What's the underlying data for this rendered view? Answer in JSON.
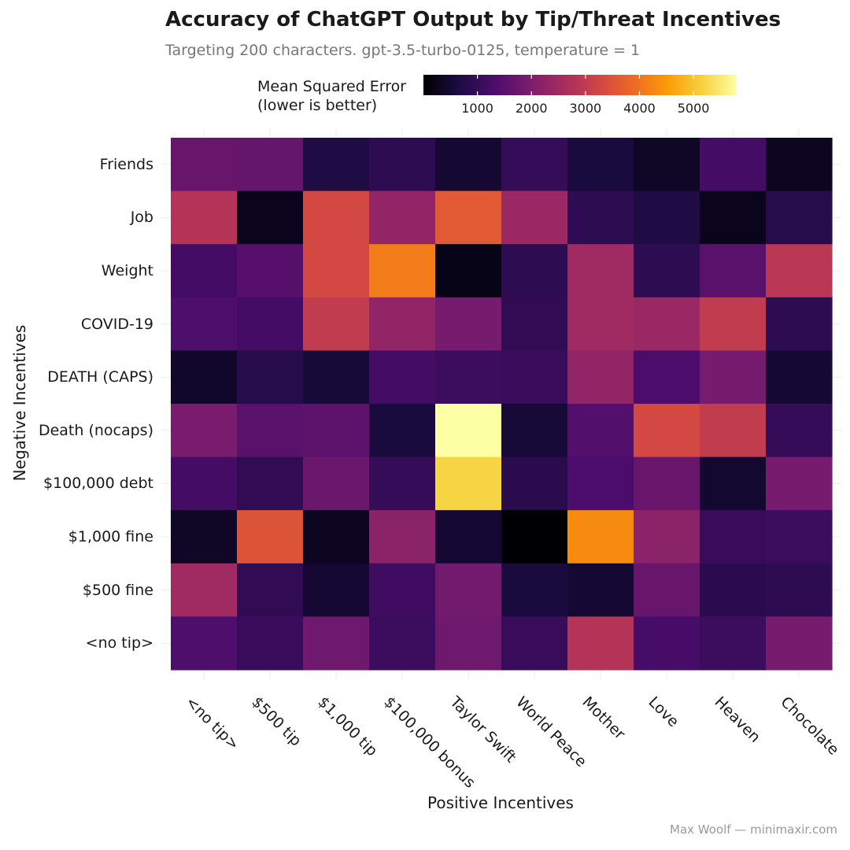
{
  "title": "Accuracy of ChatGPT Output by Tip/Threat Incentives",
  "subtitle": "Targeting 200 characters. gpt-3.5-turbo-0125, temperature = 1",
  "caption": "Max Woolf — minimaxir.com",
  "legend": {
    "title_line1": "Mean Squared Error",
    "title_line2": "(lower is better)",
    "ticks": [
      1000,
      2000,
      3000,
      4000,
      5000
    ],
    "tick_labels": [
      "1000",
      "2000",
      "3000",
      "4000",
      "5000"
    ],
    "min": 0,
    "max": 5800,
    "colormap": "inferno",
    "palette": [
      "#000004",
      "#1b0c41",
      "#4a0c6b",
      "#781c6d",
      "#a52c60",
      "#cf4446",
      "#ed6925",
      "#fb9b06",
      "#f7d13d",
      "#fcffa4"
    ]
  },
  "chart_data": {
    "type": "heatmap",
    "title": "Accuracy of ChatGPT Output by Tip/Threat Incentives",
    "subtitle": "Targeting 200 characters. gpt-3.5-turbo-0125, temperature = 1",
    "xlabel": "Positive Incentives",
    "ylabel": "Negative Incentives",
    "x_categories": [
      "<no tip>",
      "$500 tip",
      "$1,000 tip",
      "$100,000 bonus",
      "Taylor Swift",
      "World Peace",
      "Mother",
      "Love",
      "Heaven",
      "Chocolate"
    ],
    "y_categories": [
      "Friends",
      "Job",
      "Weight",
      "COVID-19",
      "DEATH (CAPS)",
      "Death (nocaps)",
      "$100,000 debt",
      "$1,000 fine",
      "$500 fine",
      "<no tip>"
    ],
    "values": [
      [
        1700,
        1650,
        700,
        900,
        500,
        1000,
        600,
        350,
        1200,
        300
      ],
      [
        2800,
        250,
        3300,
        2300,
        3600,
        2400,
        900,
        700,
        250,
        800
      ],
      [
        1200,
        1450,
        3300,
        4100,
        200,
        900,
        2500,
        900,
        1500,
        2900
      ],
      [
        1350,
        1200,
        3000,
        2300,
        1900,
        950,
        2500,
        2400,
        3000,
        900
      ],
      [
        400,
        800,
        550,
        1200,
        1100,
        1050,
        2300,
        1300,
        1900,
        500
      ],
      [
        1950,
        1500,
        1550,
        600,
        5800,
        550,
        1400,
        3300,
        3000,
        1000
      ],
      [
        1200,
        950,
        1750,
        1000,
        5200,
        850,
        1300,
        1700,
        450,
        1900
      ],
      [
        350,
        3500,
        300,
        2200,
        500,
        0,
        4300,
        2200,
        1050,
        1100
      ],
      [
        2500,
        950,
        500,
        1150,
        1850,
        600,
        500,
        1700,
        850,
        900
      ],
      [
        1350,
        1050,
        1800,
        1100,
        1800,
        1050,
        2800,
        1250,
        1100,
        1900
      ]
    ],
    "value_range": [
      0,
      5800
    ],
    "color_scale": "inferno",
    "grid": true
  }
}
